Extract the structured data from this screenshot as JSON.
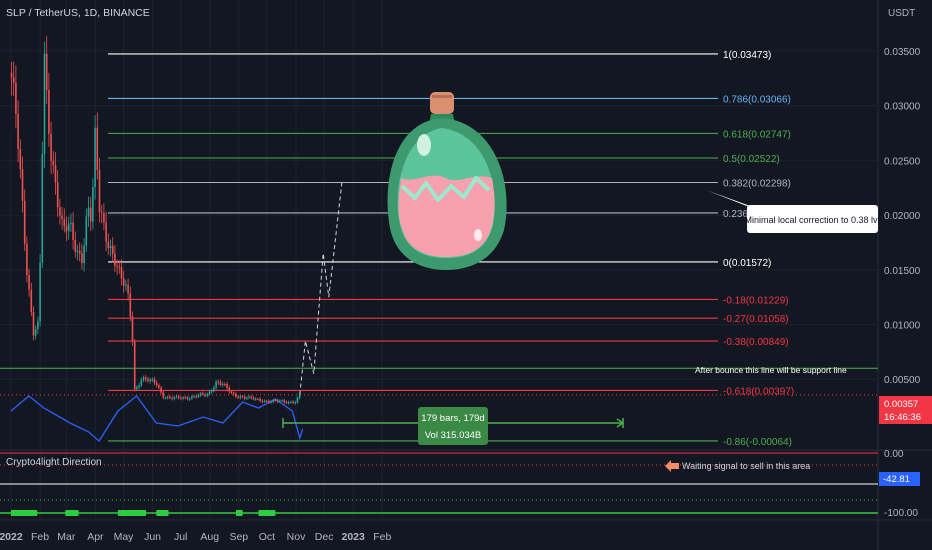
{
  "header": {
    "symbol": "SLP / TetherUS, 1D, BINANCE",
    "currency": "USDT"
  },
  "chart_data": {
    "type": "candlestick",
    "title": "SLP / TetherUS, 1D, BINANCE",
    "y_unit": "USDT",
    "y_axis": {
      "ticks": [
        "0.03500",
        "0.03000",
        "0.02500",
        "0.02000",
        "0.01500",
        "0.01000",
        "0.00500"
      ],
      "range": [
        0.0,
        0.038
      ]
    },
    "x_axis": {
      "ticks": [
        "2022",
        "Feb",
        "Mar",
        "Apr",
        "May",
        "Jun",
        "Jul",
        "Aug",
        "Sep",
        "Oct",
        "Nov",
        "Dec",
        "2023",
        "Feb"
      ]
    },
    "price_path": [
      [
        "2022-01-01",
        0.033
      ],
      [
        "2022-01-06",
        0.029
      ],
      [
        "2022-01-12",
        0.022
      ],
      [
        "2022-01-18",
        0.015
      ],
      [
        "2022-01-25",
        0.0095
      ],
      [
        "2022-01-30",
        0.01
      ],
      [
        "2022-02-02",
        0.018
      ],
      [
        "2022-02-05",
        0.0345
      ],
      [
        "2022-02-08",
        0.03
      ],
      [
        "2022-02-12",
        0.026
      ],
      [
        "2022-02-18",
        0.023
      ],
      [
        "2022-02-25",
        0.019
      ],
      [
        "2022-03-05",
        0.0185
      ],
      [
        "2022-03-12",
        0.0165
      ],
      [
        "2022-03-18",
        0.0165
      ],
      [
        "2022-03-24",
        0.021
      ],
      [
        "2022-03-28",
        0.0195
      ],
      [
        "2022-04-01",
        0.027
      ],
      [
        "2022-04-05",
        0.0205
      ],
      [
        "2022-04-12",
        0.0185
      ],
      [
        "2022-04-20",
        0.0165
      ],
      [
        "2022-04-28",
        0.014
      ],
      [
        "2022-05-05",
        0.013
      ],
      [
        "2022-05-10",
        0.01
      ],
      [
        "2022-05-13",
        0.004
      ],
      [
        "2022-05-20",
        0.005
      ],
      [
        "2022-05-28",
        0.0048
      ],
      [
        "2022-06-05",
        0.0047
      ],
      [
        "2022-06-12",
        0.0035
      ],
      [
        "2022-06-20",
        0.0032
      ],
      [
        "2022-07-01",
        0.0033
      ],
      [
        "2022-07-15",
        0.0034
      ],
      [
        "2022-07-30",
        0.0036
      ],
      [
        "2022-08-08",
        0.0048
      ],
      [
        "2022-08-15",
        0.0045
      ],
      [
        "2022-08-25",
        0.0036
      ],
      [
        "2022-09-05",
        0.0034
      ],
      [
        "2022-09-20",
        0.0031
      ],
      [
        "2022-10-05",
        0.003
      ],
      [
        "2022-10-20",
        0.0029
      ],
      [
        "2022-11-01",
        0.003
      ],
      [
        "2022-11-05",
        0.0036
      ]
    ],
    "projection": [
      [
        "2022-11-05",
        0.0036
      ],
      [
        "2022-11-11",
        0.0085
      ],
      [
        "2022-11-20",
        0.0055
      ],
      [
        "2022-11-30",
        0.0165
      ],
      [
        "2022-12-06",
        0.0125
      ],
      [
        "2022-12-20",
        0.023
      ]
    ],
    "fib_levels": [
      {
        "label": "1(0.03473)",
        "value": 0.03473,
        "color": "#ffffff"
      },
      {
        "label": "0.786(0.03066)",
        "value": 0.03066,
        "color": "#64b5f6"
      },
      {
        "label": "0.618(0.02747)",
        "value": 0.02747,
        "color": "#4caf50"
      },
      {
        "label": "0.5(0.02522)",
        "value": 0.02522,
        "color": "#4caf50"
      },
      {
        "label": "0.382(0.02298)",
        "value": 0.02298,
        "color": "#b2b5be"
      },
      {
        "label": "0.236(0.0202)",
        "value": 0.0202,
        "color": "#b2b5be"
      },
      {
        "label": "0(0.01572)",
        "value": 0.01572,
        "color": "#ffffff"
      },
      {
        "label": "-0.18(0.01229)",
        "value": 0.01229,
        "color": "#f23645"
      },
      {
        "label": "-0.27(0.01058)",
        "value": 0.01058,
        "color": "#f23645"
      },
      {
        "label": "-0.38(0.00849)",
        "value": 0.00849,
        "color": "#f23645"
      },
      {
        "label": "-0.618(0.00397)",
        "value": 0.00397,
        "color": "#f23645"
      },
      {
        "label": "-0.86(-0.00064)",
        "value": -0.00064,
        "color": "#4caf50"
      }
    ],
    "support_line": {
      "value": 0.006,
      "color": "#4caf50"
    },
    "current_price": {
      "label": "0.00357",
      "value": 0.00357,
      "countdown": "16:46:36",
      "color": "#f23645"
    },
    "annotations": {
      "callout": "Minimal local correction to 0.38 lvl",
      "support_note": "After bounce this line will be support line",
      "range_bars": "179 bars, 179d",
      "range_vol": "Vol 315.034B"
    }
  },
  "indicator": {
    "name": "Crypto4light Direction",
    "ticks": [
      "0.00",
      "-100.00"
    ],
    "current_label": "-42.81",
    "current_value": -42.81,
    "sell_note": "Waiting signal to sell in this area",
    "series": [
      [
        "2022-01-01",
        -70
      ],
      [
        "2022-01-20",
        -95
      ],
      [
        "2022-02-05",
        -75
      ],
      [
        "2022-03-05",
        -50
      ],
      [
        "2022-03-25",
        -35
      ],
      [
        "2022-04-05",
        -20
      ],
      [
        "2022-04-25",
        -70
      ],
      [
        "2022-05-15",
        -95
      ],
      [
        "2022-06-05",
        -50
      ],
      [
        "2022-06-28",
        -45
      ],
      [
        "2022-07-25",
        -60
      ],
      [
        "2022-08-15",
        -50
      ],
      [
        "2022-09-05",
        -85
      ],
      [
        "2022-09-22",
        -75
      ],
      [
        "2022-10-10",
        -90
      ],
      [
        "2022-10-28",
        -70
      ],
      [
        "2022-11-05",
        -25
      ],
      [
        "2022-11-08",
        -40
      ]
    ],
    "signal_zones": [
      [
        "2022-01-01",
        "2022-01-29"
      ],
      [
        "2022-02-28",
        "2022-03-14"
      ],
      [
        "2022-04-25",
        "2022-05-25"
      ],
      [
        "2022-06-05",
        "2022-06-18"
      ],
      [
        "2022-08-29",
        "2022-09-05"
      ],
      [
        "2022-09-22",
        "2022-10-10"
      ]
    ]
  }
}
